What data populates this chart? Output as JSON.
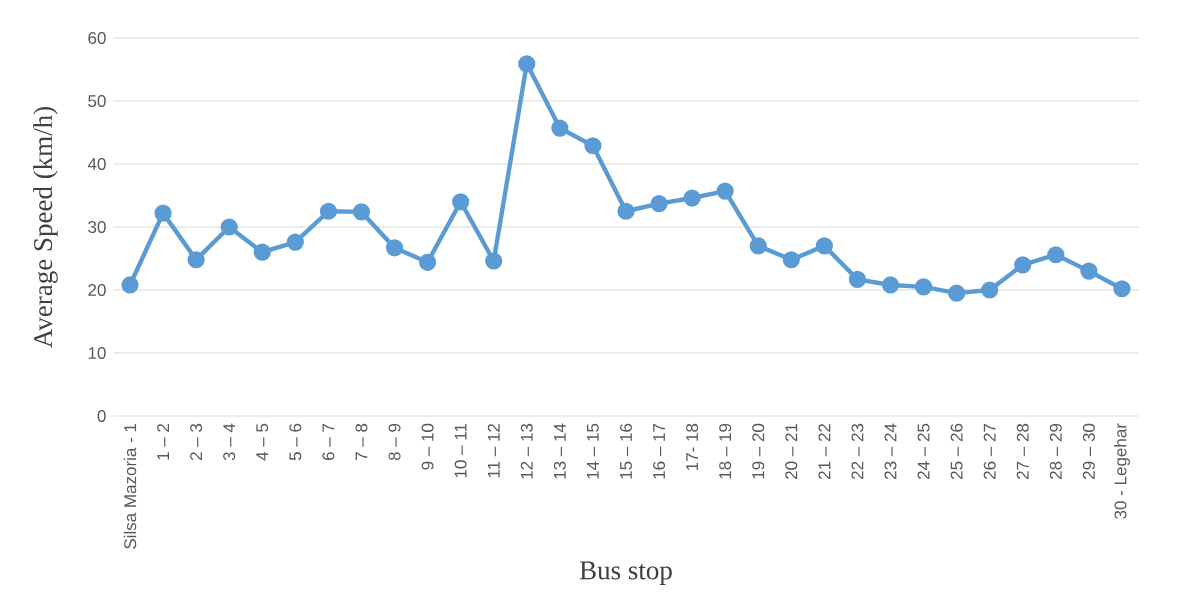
{
  "chart_data": {
    "type": "line",
    "xlabel": "Bus stop",
    "ylabel": "Average Speed (km/h)",
    "categories": [
      "Silsa Mazoria - 1",
      "1 – 2",
      "2 – 3",
      "3 – 4",
      "4 – 5",
      "5 – 6",
      "6 – 7",
      "7 – 8",
      "8 – 9",
      "9 – 10",
      "10 – 11",
      "11 – 12",
      "12 – 13",
      "13 – 14",
      "14 – 15",
      "15 – 16",
      "16 – 17",
      "17- 18",
      "18 – 19",
      "19 – 20",
      "20 – 21",
      "21 – 22",
      "22 – 23",
      "23 – 24",
      "24 – 25",
      "25 – 26",
      "26 – 27",
      "27 – 28",
      "28 – 29",
      "29 – 30",
      "30 - Legehar"
    ],
    "series": [
      {
        "color": "#5b9bd5",
        "values": [
          20.8,
          32.2,
          24.8,
          30.0,
          26.0,
          27.6,
          32.5,
          32.4,
          26.7,
          24.4,
          34.0,
          24.6,
          55.9,
          45.7,
          42.9,
          32.5,
          33.7,
          34.6,
          35.7,
          27.0,
          24.8,
          27.0,
          21.7,
          20.8,
          20.5,
          19.5,
          20.0,
          24.0,
          25.6,
          23.0,
          20.2
        ]
      }
    ],
    "ylim": [
      0,
      60
    ],
    "yticks": [
      0,
      10,
      20,
      30,
      40,
      50,
      60
    ],
    "grid": "y",
    "marker": "circle",
    "line_style": "solid"
  }
}
